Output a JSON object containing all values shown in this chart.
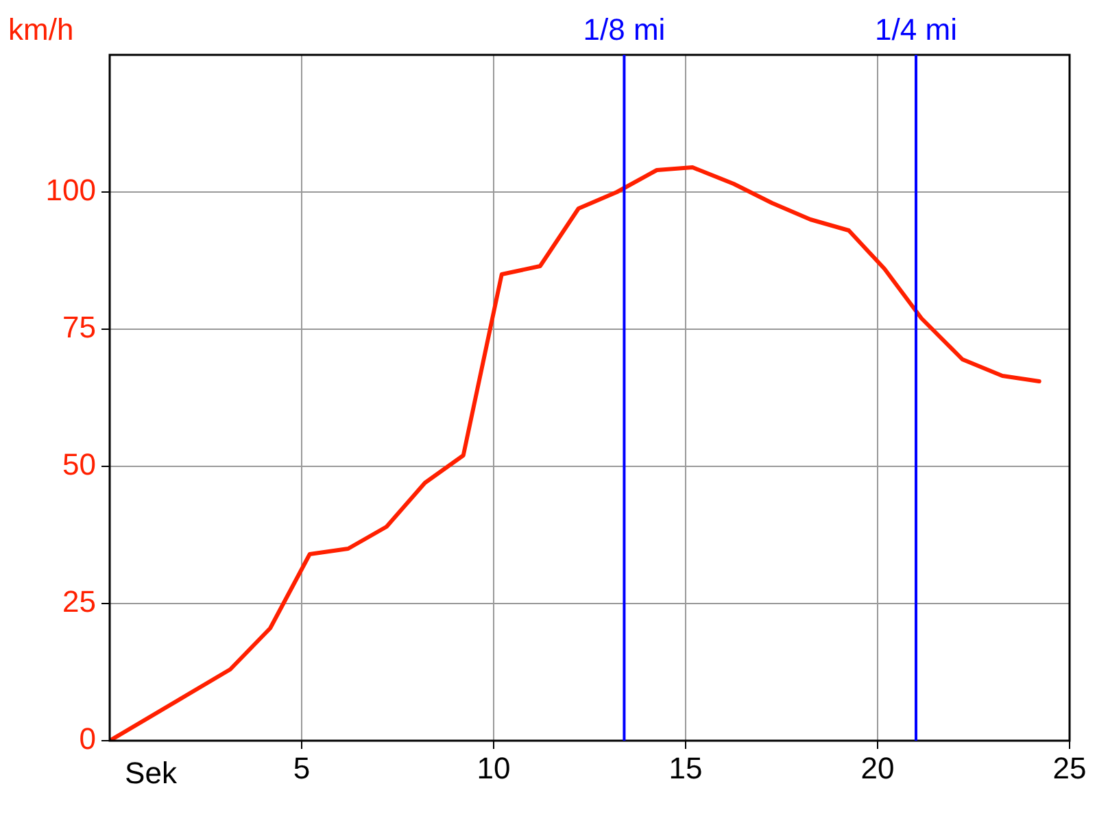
{
  "chart_data": {
    "type": "line",
    "xlabel": "Sek",
    "ylabel": "km/h",
    "x": [
      0,
      3.14,
      4.18,
      5.21,
      6.21,
      7.21,
      8.21,
      9.21,
      10.21,
      11.21,
      12.21,
      13.21,
      14.25,
      15.18,
      16.25,
      17.25,
      18.25,
      19.25,
      20.18,
      21.14,
      22.21,
      23.25,
      24.21
    ],
    "series": [
      {
        "color": "#ff2000",
        "values": [
          0,
          13,
          20.5,
          34,
          35,
          39,
          47,
          52,
          85,
          86.5,
          97,
          100,
          104,
          104.5,
          101.5,
          98,
          95,
          93,
          86,
          77,
          69.5,
          66.5,
          65.5
        ]
      }
    ],
    "xlim": [
      0,
      25
    ],
    "xticks": [
      5,
      10,
      15,
      20,
      25
    ],
    "ylim": [
      0,
      125
    ],
    "yticks": [
      0,
      25,
      50,
      75,
      100
    ],
    "ref_lines": [
      {
        "axis": "x",
        "value": 13.4,
        "label": "1/8 mi",
        "color": "#0000ff"
      },
      {
        "axis": "x",
        "value": 21.0,
        "label": "1/4 mi",
        "color": "#0000ff"
      }
    ],
    "grid": true,
    "legend": false,
    "marker": "none",
    "line_style": "solid"
  }
}
